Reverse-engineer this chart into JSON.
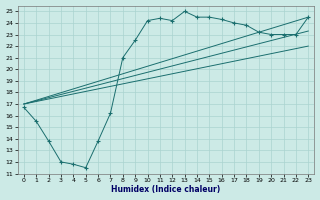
{
  "xlabel": "Humidex (Indice chaleur)",
  "bg_color": "#cceae6",
  "grid_color": "#aad4d0",
  "line_color": "#1a6e6e",
  "xlim": [
    -0.5,
    23.5
  ],
  "ylim": [
    11,
    25.5
  ],
  "xticks": [
    0,
    1,
    2,
    3,
    4,
    5,
    6,
    7,
    8,
    9,
    10,
    11,
    12,
    13,
    14,
    15,
    16,
    17,
    18,
    19,
    20,
    21,
    22,
    23
  ],
  "yticks": [
    11,
    12,
    13,
    14,
    15,
    16,
    17,
    18,
    19,
    20,
    21,
    22,
    23,
    24,
    25
  ],
  "line1_x": [
    0,
    1,
    2,
    3,
    4,
    5,
    6,
    7,
    8,
    9,
    10,
    11,
    12,
    13,
    14,
    15,
    16,
    17,
    18,
    19,
    20,
    21,
    22,
    23
  ],
  "line1_y": [
    16.7,
    15.5,
    13.8,
    12.0,
    11.8,
    11.5,
    13.8,
    16.2,
    21.0,
    22.5,
    24.2,
    24.4,
    24.2,
    25.0,
    24.5,
    24.5,
    24.3,
    24.0,
    23.8,
    23.2,
    23.0,
    23.0,
    23.0,
    24.5
  ],
  "line2_x": [
    0,
    23
  ],
  "line2_y": [
    17.0,
    24.5
  ],
  "line3_x": [
    0,
    23
  ],
  "line3_y": [
    17.0,
    23.3
  ],
  "line4_x": [
    0,
    23
  ],
  "line4_y": [
    17.0,
    22.0
  ]
}
